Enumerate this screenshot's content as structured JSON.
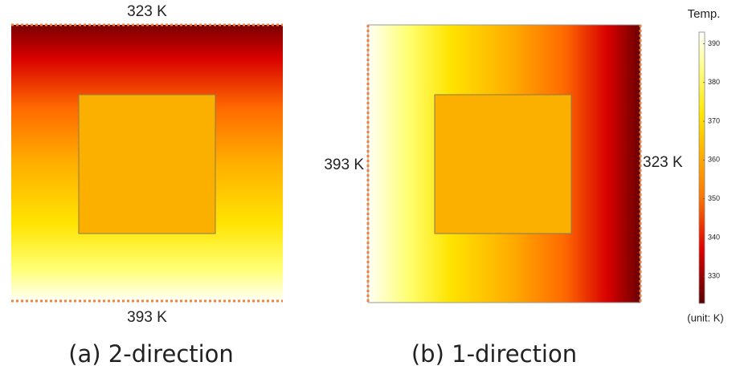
{
  "panels": [
    {
      "caption": "(a) 2-direction",
      "top_label": "323 K",
      "bottom_label": "393 K"
    },
    {
      "caption": "(b) 1-direction",
      "left_label": "393 K",
      "right_label": "323 K"
    }
  ],
  "colorbar": {
    "title": "Temp.",
    "unit": "(unit: K)",
    "range": [
      323,
      393
    ],
    "ticks": [
      330,
      340,
      350,
      360,
      370,
      380,
      390
    ]
  }
}
